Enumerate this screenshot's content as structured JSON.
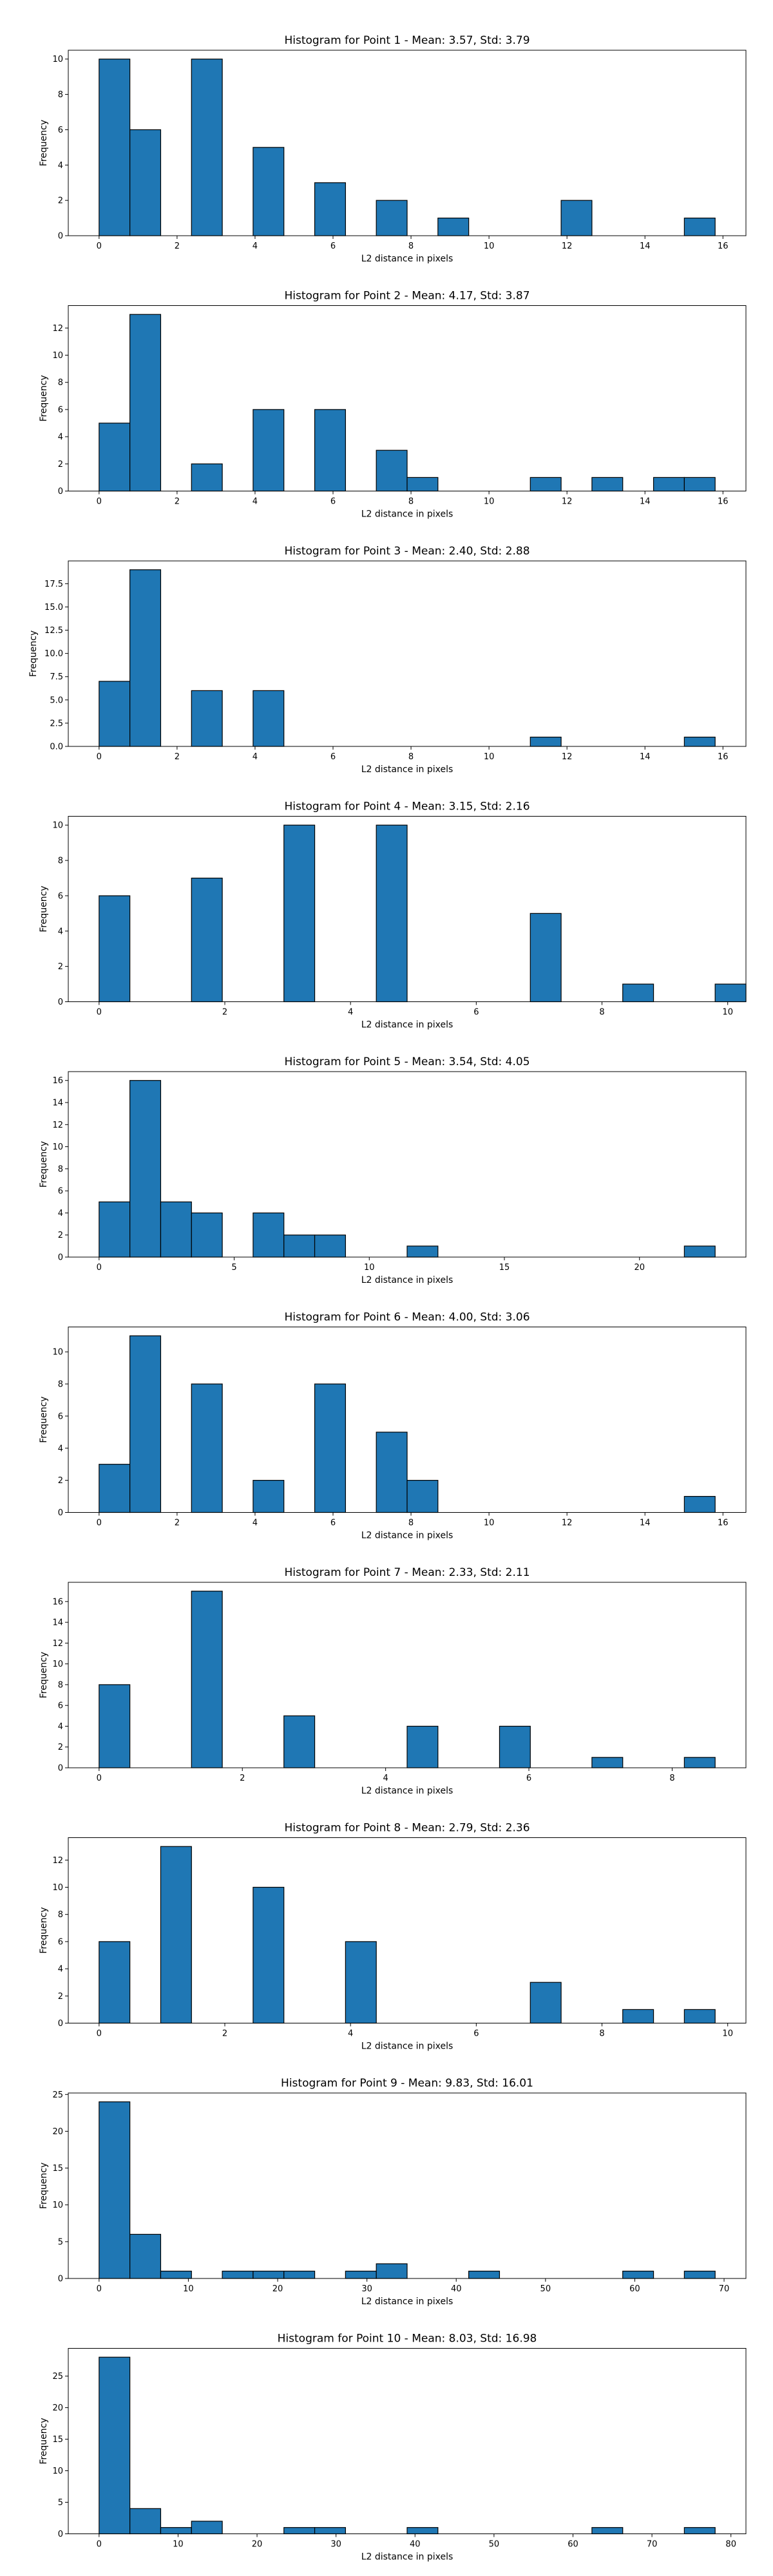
{
  "chart_data": [
    {
      "type": "bar",
      "title": "Histogram for Point 1 - Mean: 3.57, Std: 3.79",
      "xlabel": "L2 distance in pixels",
      "ylabel": "Frequency",
      "bin_start": 0,
      "bin_width": 0.79,
      "values": [
        10,
        6,
        0,
        10,
        0,
        5,
        0,
        3,
        0,
        2,
        0,
        1,
        0,
        0,
        0,
        2,
        0,
        0,
        0,
        1
      ],
      "xlim": [
        -0.79,
        16.59
      ],
      "ylim": [
        0,
        10.5
      ],
      "xticks": [
        0,
        2,
        4,
        6,
        8,
        10,
        12,
        14,
        16
      ],
      "yticks": [
        0,
        2,
        4,
        6,
        8,
        10
      ]
    },
    {
      "type": "bar",
      "title": "Histogram for Point 2 - Mean: 4.17, Std: 3.87",
      "xlabel": "L2 distance in pixels",
      "ylabel": "Frequency",
      "bin_start": 0,
      "bin_width": 0.79,
      "values": [
        5,
        13,
        0,
        2,
        0,
        6,
        0,
        6,
        0,
        3,
        1,
        0,
        0,
        0,
        1,
        0,
        1,
        0,
        1,
        1
      ],
      "xlim": [
        -0.79,
        16.59
      ],
      "ylim": [
        0,
        13.65
      ],
      "xticks": [
        0,
        2,
        4,
        6,
        8,
        10,
        12,
        14,
        16
      ],
      "yticks": [
        0,
        2,
        4,
        6,
        8,
        10,
        12
      ]
    },
    {
      "type": "bar",
      "title": "Histogram for Point 3 - Mean: 2.40, Std: 2.88",
      "xlabel": "L2 distance in pixels",
      "ylabel": "Frequency",
      "bin_start": 0,
      "bin_width": 0.79,
      "values": [
        7,
        19,
        0,
        6,
        0,
        6,
        0,
        0,
        0,
        0,
        0,
        0,
        0,
        0,
        1,
        0,
        0,
        0,
        0,
        1
      ],
      "xlim": [
        -0.79,
        16.59
      ],
      "ylim": [
        0,
        19.95
      ],
      "xticks": [
        0,
        2,
        4,
        6,
        8,
        10,
        12,
        14,
        16
      ],
      "yticks": [
        "0.0",
        "2.5",
        "5.0",
        "7.5",
        "10.0",
        "12.5",
        "15.0",
        "17.5"
      ]
    },
    {
      "type": "bar",
      "title": "Histogram for Point 4 - Mean: 3.15, Std: 2.16",
      "xlabel": "L2 distance in pixels",
      "ylabel": "Frequency",
      "bin_start": 0,
      "bin_width": 0.49,
      "values": [
        6,
        0,
        0,
        7,
        0,
        0,
        10,
        0,
        0,
        10,
        0,
        0,
        0,
        0,
        5,
        0,
        0,
        1,
        0,
        0,
        1
      ],
      "xlim": [
        -0.49,
        10.29
      ],
      "ylim": [
        0,
        10.5
      ],
      "xticks": [
        0,
        2,
        4,
        6,
        8,
        10
      ],
      "yticks": [
        0,
        2,
        4,
        6,
        8,
        10
      ]
    },
    {
      "type": "bar",
      "title": "Histogram for Point 5 - Mean: 3.54, Std: 4.05",
      "xlabel": "L2 distance in pixels",
      "ylabel": "Frequency",
      "bin_start": 0,
      "bin_width": 1.14,
      "values": [
        5,
        16,
        5,
        4,
        0,
        4,
        2,
        2,
        0,
        0,
        1,
        0,
        0,
        0,
        0,
        0,
        0,
        0,
        0,
        1
      ],
      "xlim": [
        -1.14,
        23.94
      ],
      "ylim": [
        0,
        16.8
      ],
      "xticks": [
        0,
        5,
        10,
        15,
        20
      ],
      "yticks": [
        0,
        2,
        4,
        6,
        8,
        10,
        12,
        14,
        16
      ]
    },
    {
      "type": "bar",
      "title": "Histogram for Point 6 - Mean: 4.00, Std: 3.06",
      "xlabel": "L2 distance in pixels",
      "ylabel": "Frequency",
      "bin_start": 0,
      "bin_width": 0.79,
      "values": [
        3,
        11,
        0,
        8,
        0,
        2,
        0,
        8,
        0,
        5,
        2,
        0,
        0,
        0,
        0,
        0,
        0,
        0,
        0,
        1
      ],
      "xlim": [
        -0.79,
        16.59
      ],
      "ylim": [
        0,
        11.55
      ],
      "xticks": [
        0,
        2,
        4,
        6,
        8,
        10,
        12,
        14,
        16
      ],
      "yticks": [
        0,
        2,
        4,
        6,
        8,
        10
      ]
    },
    {
      "type": "bar",
      "title": "Histogram for Point 7 - Mean: 2.33, Std: 2.11",
      "xlabel": "L2 distance in pixels",
      "ylabel": "Frequency",
      "bin_start": 0,
      "bin_width": 0.43,
      "values": [
        8,
        0,
        0,
        17,
        0,
        0,
        5,
        0,
        0,
        0,
        4,
        0,
        0,
        4,
        0,
        0,
        1,
        0,
        0,
        1
      ],
      "xlim": [
        -0.43,
        9.03
      ],
      "ylim": [
        0,
        17.85
      ],
      "xticks": [
        0,
        2,
        4,
        6,
        8
      ],
      "yticks": [
        0,
        2,
        4,
        6,
        8,
        10,
        12,
        14,
        16
      ]
    },
    {
      "type": "bar",
      "title": "Histogram for Point 8 - Mean: 2.79, Std: 2.36",
      "xlabel": "L2 distance in pixels",
      "ylabel": "Frequency",
      "bin_start": 0,
      "bin_width": 0.49,
      "values": [
        6,
        0,
        13,
        0,
        0,
        10,
        0,
        0,
        6,
        0,
        0,
        0,
        0,
        0,
        3,
        0,
        0,
        1,
        0,
        1
      ],
      "xlim": [
        -0.49,
        10.29
      ],
      "ylim": [
        0,
        13.65
      ],
      "xticks": [
        0,
        2,
        4,
        6,
        8,
        10
      ],
      "yticks": [
        0,
        2,
        4,
        6,
        8,
        10,
        12
      ]
    },
    {
      "type": "bar",
      "title": "Histogram for Point 9 - Mean: 9.83, Std: 16.01",
      "xlabel": "L2 distance in pixels",
      "ylabel": "Frequency",
      "bin_start": 0,
      "bin_width": 3.45,
      "values": [
        24,
        6,
        1,
        0,
        1,
        1,
        1,
        0,
        1,
        2,
        0,
        0,
        1,
        0,
        0,
        0,
        0,
        1,
        0,
        1
      ],
      "xlim": [
        -3.45,
        72.45
      ],
      "ylim": [
        0,
        25.2
      ],
      "xticks": [
        0,
        10,
        20,
        30,
        40,
        50,
        60,
        70
      ],
      "yticks": [
        0,
        5,
        10,
        15,
        20,
        25
      ]
    },
    {
      "type": "bar",
      "title": "Histogram for Point 10 - Mean: 8.03, Std: 16.98",
      "xlabel": "L2 distance in pixels",
      "ylabel": "Frequency",
      "bin_start": 0,
      "bin_width": 3.9,
      "values": [
        28,
        4,
        1,
        2,
        0,
        0,
        1,
        1,
        0,
        0,
        1,
        0,
        0,
        0,
        0,
        0,
        1,
        0,
        0,
        1
      ],
      "xlim": [
        -3.9,
        81.9
      ],
      "ylim": [
        0,
        29.4
      ],
      "xticks": [
        0,
        10,
        20,
        30,
        40,
        50,
        60,
        70,
        80
      ],
      "yticks": [
        0,
        5,
        10,
        15,
        20,
        25
      ]
    }
  ]
}
